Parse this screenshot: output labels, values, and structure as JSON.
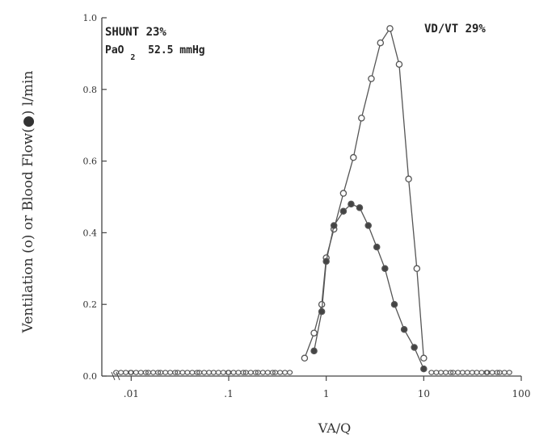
{
  "chart_data": {
    "type": "line",
    "xlabel": "VA/Q",
    "ylabel": "Ventilation (o) or Blood Flow(●) l/min",
    "x_scale": "log",
    "xlim": [
      0.005,
      100
    ],
    "ylim": [
      0,
      1.0
    ],
    "x_ticks": [
      {
        "value": 0.01,
        "label": ".01"
      },
      {
        "value": 0.1,
        "label": ".1"
      },
      {
        "value": 1,
        "label": "1"
      },
      {
        "value": 10,
        "label": "10"
      },
      {
        "value": 100,
        "label": "100"
      }
    ],
    "y_ticks": [
      {
        "value": 0.0,
        "label": "0.0"
      },
      {
        "value": 0.2,
        "label": "0.2"
      },
      {
        "value": 0.4,
        "label": "0.4"
      },
      {
        "value": 0.6,
        "label": "0.6"
      },
      {
        "value": 0.8,
        "label": "0.8"
      },
      {
        "value": 1.0,
        "label": "1.0"
      }
    ],
    "annotations": {
      "shunt": "SHUNT  23%",
      "pao2_prefix": "PaO",
      "pao2_sub": "2",
      "pao2_value": "52.5 mmHg",
      "vdvt": "VD/VT   29%"
    },
    "series": [
      {
        "marker": "open-circle",
        "color": "#555555",
        "x": [
          0.6,
          0.75,
          0.9,
          1.0,
          1.2,
          1.5,
          1.9,
          2.3,
          2.9,
          3.6,
          4.5,
          5.6,
          7.0,
          8.5,
          10.0
        ],
        "y": [
          0.05,
          0.12,
          0.2,
          0.33,
          0.41,
          0.51,
          0.61,
          0.72,
          0.83,
          0.93,
          0.97,
          0.87,
          0.55,
          0.3,
          0.05
        ]
      },
      {
        "marker": "filled-circle",
        "color": "#555555",
        "x": [
          0.75,
          0.9,
          1.0,
          1.2,
          1.5,
          1.8,
          2.2,
          2.7,
          3.3,
          4.0,
          5.0,
          6.3,
          8.0,
          10.0
        ],
        "y": [
          0.07,
          0.18,
          0.32,
          0.42,
          0.46,
          0.48,
          0.47,
          0.42,
          0.36,
          0.3,
          0.2,
          0.13,
          0.08,
          0.02
        ]
      },
      {
        "marker": "baseline-dashes",
        "color": "#555555",
        "x": [
          0.007,
          0.01,
          0.015,
          0.02,
          0.03,
          0.05,
          0.07,
          0.1,
          0.15,
          0.2,
          0.3,
          0.45,
          12,
          15,
          20,
          25,
          35,
          45,
          60,
          80
        ],
        "y": [
          0.01,
          0.01,
          0.01,
          0.01,
          0.01,
          0.01,
          0.01,
          0.01,
          0.01,
          0.01,
          0.01,
          0.01,
          0.01,
          0.01,
          0.01,
          0.01,
          0.01,
          0.01,
          0.01,
          0.01
        ]
      }
    ],
    "grid": false
  }
}
